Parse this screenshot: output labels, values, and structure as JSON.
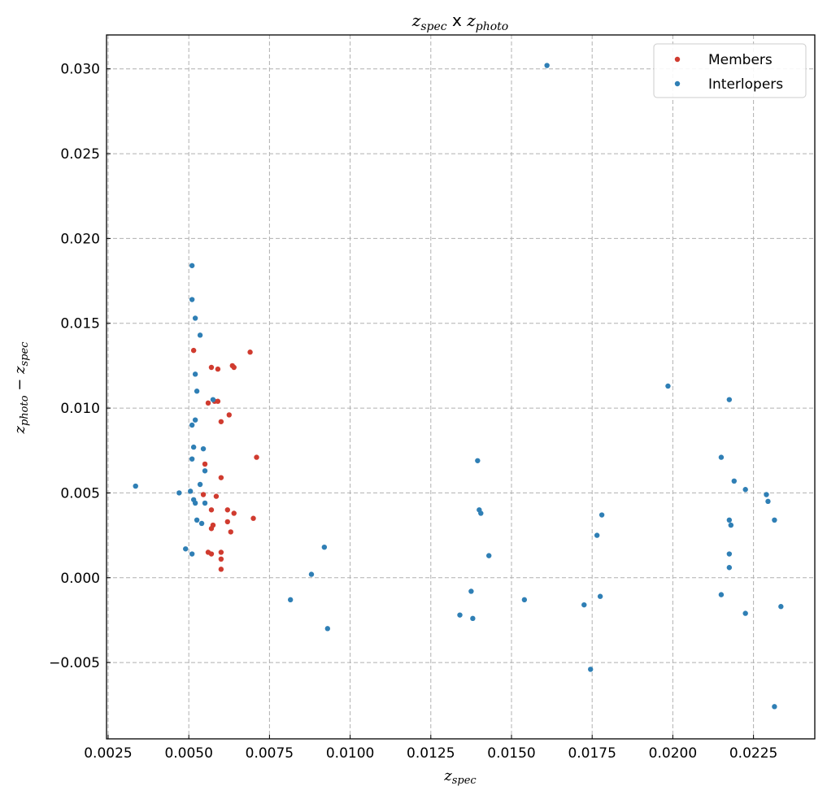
{
  "chart_data": {
    "type": "scatter",
    "title": {
      "a": "z",
      "a_sub": "spec",
      "sep": " x ",
      "b": "z",
      "b_sub": "photo"
    },
    "xlabel": {
      "main": "z",
      "sub": "spec"
    },
    "ylabel": {
      "a": "z",
      "a_sub": "photo",
      "op": " − ",
      "b": "z",
      "b_sub": "spec"
    },
    "xlim": [
      0.00245,
      0.0244
    ],
    "ylim": [
      -0.0095,
      0.032
    ],
    "xticks": [
      0.0025,
      0.005,
      0.0075,
      0.01,
      0.0125,
      0.015,
      0.0175,
      0.02,
      0.0225
    ],
    "xtick_labels": [
      "0.0025",
      "0.0050",
      "0.0075",
      "0.0100",
      "0.0125",
      "0.0150",
      "0.0175",
      "0.0200",
      "0.0225"
    ],
    "yticks": [
      -0.005,
      0.0,
      0.005,
      0.01,
      0.015,
      0.02,
      0.025,
      0.03
    ],
    "ytick_labels": [
      "−0.005",
      "0.000",
      "0.005",
      "0.010",
      "0.015",
      "0.020",
      "0.025",
      "0.030"
    ],
    "grid": true,
    "legend_position": "top-right",
    "series": [
      {
        "name": "Members",
        "color": "#d03b2f",
        "points": [
          [
            0.00515,
            0.0134
          ],
          [
            0.0057,
            0.0124
          ],
          [
            0.0059,
            0.0123
          ],
          [
            0.00635,
            0.0125
          ],
          [
            0.0064,
            0.0124
          ],
          [
            0.0069,
            0.0133
          ],
          [
            0.0056,
            0.0103
          ],
          [
            0.0058,
            0.0104
          ],
          [
            0.0059,
            0.0104
          ],
          [
            0.00625,
            0.0096
          ],
          [
            0.006,
            0.0092
          ],
          [
            0.0071,
            0.0071
          ],
          [
            0.0055,
            0.0067
          ],
          [
            0.006,
            0.0059
          ],
          [
            0.00545,
            0.0049
          ],
          [
            0.00585,
            0.0048
          ],
          [
            0.0057,
            0.004
          ],
          [
            0.0062,
            0.004
          ],
          [
            0.0064,
            0.0038
          ],
          [
            0.007,
            0.0035
          ],
          [
            0.0062,
            0.0033
          ],
          [
            0.00575,
            0.0031
          ],
          [
            0.0057,
            0.0029
          ],
          [
            0.0063,
            0.0027
          ],
          [
            0.0056,
            0.0015
          ],
          [
            0.0057,
            0.0014
          ],
          [
            0.006,
            0.0015
          ],
          [
            0.006,
            0.0011
          ],
          [
            0.006,
            0.0005
          ]
        ]
      },
      {
        "name": "Interlopers",
        "color": "#2f7fb5",
        "points": [
          [
            0.0161,
            0.0302
          ],
          [
            0.0051,
            0.0184
          ],
          [
            0.0051,
            0.0164
          ],
          [
            0.0052,
            0.0153
          ],
          [
            0.00535,
            0.0143
          ],
          [
            0.0052,
            0.012
          ],
          [
            0.00525,
            0.011
          ],
          [
            0.00575,
            0.0105
          ],
          [
            0.0052,
            0.0093
          ],
          [
            0.0051,
            0.009
          ],
          [
            0.00515,
            0.0077
          ],
          [
            0.00545,
            0.0076
          ],
          [
            0.0051,
            0.007
          ],
          [
            0.0055,
            0.0063
          ],
          [
            0.00535,
            0.0055
          ],
          [
            0.00335,
            0.0054
          ],
          [
            0.0047,
            0.005
          ],
          [
            0.00505,
            0.0051
          ],
          [
            0.00515,
            0.0046
          ],
          [
            0.0052,
            0.0044
          ],
          [
            0.0055,
            0.0044
          ],
          [
            0.00525,
            0.0034
          ],
          [
            0.0054,
            0.0032
          ],
          [
            0.0049,
            0.0017
          ],
          [
            0.0051,
            0.0014
          ],
          [
            0.0092,
            0.0018
          ],
          [
            0.0088,
            0.0002
          ],
          [
            0.00815,
            -0.0013
          ],
          [
            0.0093,
            -0.003
          ],
          [
            0.01395,
            0.0069
          ],
          [
            0.014,
            0.004
          ],
          [
            0.01405,
            0.0038
          ],
          [
            0.0143,
            0.0013
          ],
          [
            0.01375,
            -0.0008
          ],
          [
            0.0134,
            -0.0022
          ],
          [
            0.0138,
            -0.0024
          ],
          [
            0.0154,
            -0.0013
          ],
          [
            0.0178,
            0.0037
          ],
          [
            0.01765,
            0.0025
          ],
          [
            0.01725,
            -0.0016
          ],
          [
            0.01775,
            -0.0011
          ],
          [
            0.01745,
            -0.0054
          ],
          [
            0.01985,
            0.0113
          ],
          [
            0.02175,
            0.0105
          ],
          [
            0.0215,
            0.0071
          ],
          [
            0.0219,
            0.0057
          ],
          [
            0.02225,
            0.0052
          ],
          [
            0.0229,
            0.0049
          ],
          [
            0.02295,
            0.0045
          ],
          [
            0.02175,
            0.0034
          ],
          [
            0.0218,
            0.0031
          ],
          [
            0.02315,
            0.0034
          ],
          [
            0.02175,
            0.0014
          ],
          [
            0.02175,
            0.0006
          ],
          [
            0.0215,
            -0.001
          ],
          [
            0.02225,
            -0.0021
          ],
          [
            0.02335,
            -0.0017
          ],
          [
            0.02315,
            -0.0076
          ]
        ]
      }
    ]
  }
}
